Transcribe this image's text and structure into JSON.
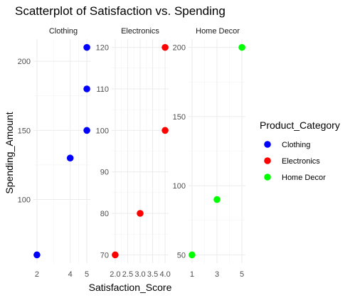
{
  "chart_data": {
    "type": "scatter",
    "title": "Scatterplot of Satisfaction vs. Spending",
    "xlabel": "Satisfaction_Score",
    "ylabel": "Spending_Amount",
    "legend": {
      "title": "Product_Category",
      "placement": "right",
      "entries": [
        {
          "name": "Clothing",
          "color": "#0000ff"
        },
        {
          "name": "Electronics",
          "color": "#ff0000"
        },
        {
          "name": "Home Decor",
          "color": "#00ff00"
        }
      ]
    },
    "facets": [
      {
        "name": "Clothing",
        "color": "#0000ff",
        "xlim": [
          2,
          5
        ],
        "ylim": [
          60,
          210
        ],
        "x_ticks": [
          2,
          4,
          5
        ],
        "x_tick_labels": [
          "2",
          "4",
          "5"
        ],
        "y_ticks": [
          100,
          150,
          200
        ],
        "y_tick_labels": [
          "100",
          "150",
          "200"
        ],
        "points": [
          {
            "x": 2,
            "y": 60
          },
          {
            "x": 4,
            "y": 130
          },
          {
            "x": 5,
            "y": 150
          },
          {
            "x": 5,
            "y": 180
          },
          {
            "x": 5,
            "y": 210
          }
        ]
      },
      {
        "name": "Electronics",
        "color": "#ff0000",
        "xlim": [
          2.0,
          4.0
        ],
        "ylim": [
          70,
          120
        ],
        "x_ticks": [
          2.0,
          2.5,
          3.0,
          3.5,
          4.0
        ],
        "x_tick_labels": [
          "2.0",
          "2.5",
          "3.0",
          "3.5",
          "4.0"
        ],
        "y_ticks": [
          70,
          80,
          90,
          100,
          110,
          120
        ],
        "y_tick_labels": [
          "70",
          "80",
          "90",
          "100",
          "110",
          "120"
        ],
        "points": [
          {
            "x": 2.0,
            "y": 70
          },
          {
            "x": 3.0,
            "y": 80
          },
          {
            "x": 4.0,
            "y": 100
          },
          {
            "x": 4.0,
            "y": 120
          }
        ]
      },
      {
        "name": "Home Decor",
        "color": "#00ff00",
        "xlim": [
          1,
          5
        ],
        "ylim": [
          50,
          200
        ],
        "x_ticks": [
          1,
          3,
          5
        ],
        "x_tick_labels": [
          "1",
          "3",
          "5"
        ],
        "y_ticks": [
          50,
          100,
          150,
          200
        ],
        "y_tick_labels": [
          "50",
          "100",
          "150",
          "200"
        ],
        "points": [
          {
            "x": 1,
            "y": 50
          },
          {
            "x": 3,
            "y": 90
          },
          {
            "x": 5,
            "y": 200
          }
        ]
      }
    ],
    "grid": true
  }
}
